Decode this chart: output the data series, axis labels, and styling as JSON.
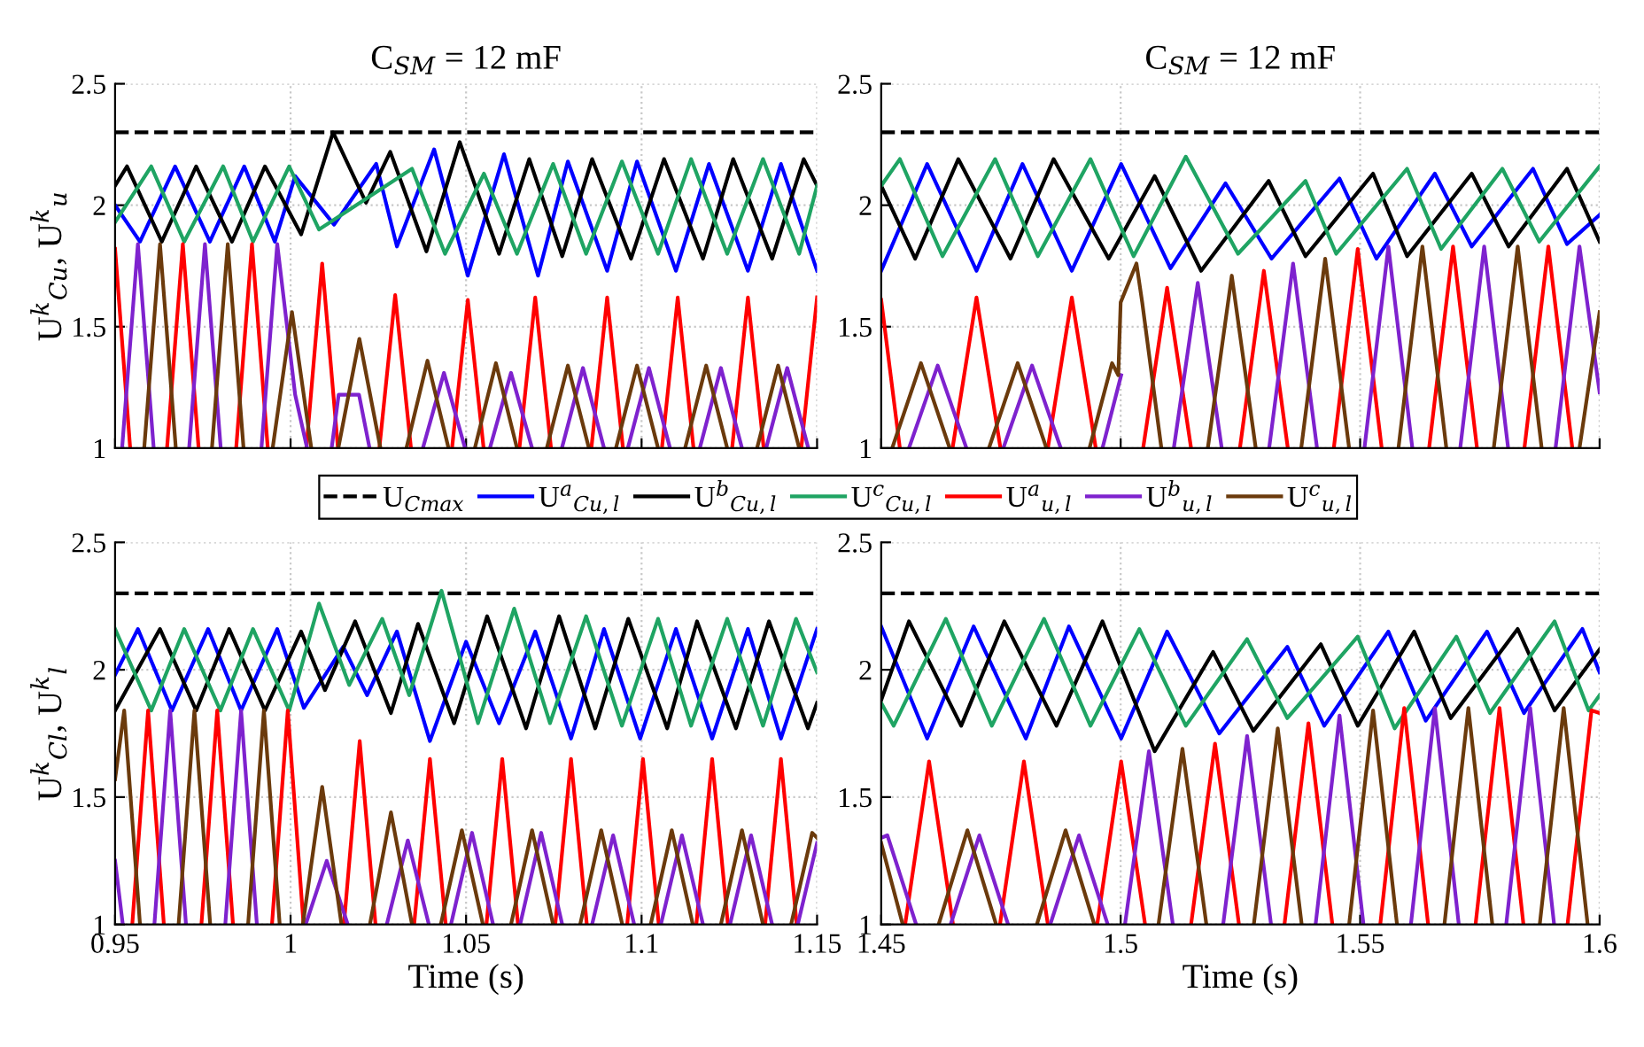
{
  "chart_data": [
    {
      "type": "line",
      "title": "C$_{SM}$ = 12 mF",
      "ylabel": "U$^{k}$$_{Cu}$, U$^{k}$$_{u}$",
      "xlim": [
        0.95,
        1.15
      ],
      "ylim": [
        1,
        2.5
      ],
      "xticks": [
        0.95,
        1,
        1.05,
        1.1,
        1.15
      ],
      "yticks": [
        1,
        1.5,
        2,
        2.5
      ],
      "grid": true,
      "tick_labels": "y",
      "legend": "bottom",
      "series": [
        {
          "name": "U$_{Cmax}$",
          "type": "line",
          "line_style": "dashed",
          "color": "#000000",
          "x": [
            0.95,
            1.15
          ],
          "values": [
            2.3,
            2.3
          ]
        },
        {
          "name": "U$^{a}$$_{Cu,l}$",
          "color": "#0000ff",
          "x": [
            0.95,
            0.9571,
            0.9671,
            0.977,
            0.9868,
            0.9955,
            1.0013,
            1.0124,
            1.0244,
            1.0303,
            1.0409,
            1.0505,
            1.0608,
            1.0705,
            1.079,
            1.0902,
            1.0987,
            1.1098,
            1.1192,
            1.1303,
            1.1397,
            1.15
          ],
          "values": [
            2.0,
            1.85,
            2.16,
            1.85,
            2.16,
            1.85,
            2.12,
            1.92,
            2.17,
            1.83,
            2.23,
            1.71,
            2.21,
            1.71,
            2.18,
            1.73,
            2.18,
            1.73,
            2.17,
            1.73,
            2.17,
            1.73
          ]
        },
        {
          "name": "U$^{b}$$_{Cu,l}$",
          "color": "#000000",
          "x": [
            0.95,
            0.9534,
            0.9633,
            0.9731,
            0.9833,
            0.9927,
            1.003,
            1.0121,
            1.0215,
            1.0284,
            1.0387,
            1.0482,
            1.0594,
            1.068,
            1.0774,
            1.0859,
            1.097,
            1.1064,
            1.1175,
            1.1261,
            1.1372,
            1.1462,
            1.15
          ],
          "values": [
            2.08,
            2.16,
            1.85,
            2.16,
            1.85,
            2.16,
            1.88,
            2.3,
            2.01,
            2.22,
            1.81,
            2.26,
            1.8,
            2.19,
            1.79,
            2.19,
            1.78,
            2.19,
            1.78,
            2.19,
            1.78,
            2.19,
            2.08
          ]
        },
        {
          "name": "U$^{c}$$_{Cu,l}$",
          "color": "#1fa463",
          "x": [
            0.95,
            0.9603,
            0.9697,
            0.9808,
            0.9893,
            0.9996,
            1.0081,
            1.0346,
            1.044,
            1.0551,
            1.0645,
            1.0748,
            1.0842,
            1.0944,
            1.1047,
            1.1141,
            1.1244,
            1.1346,
            1.1449,
            1.15
          ],
          "values": [
            1.93,
            2.16,
            1.85,
            2.16,
            1.85,
            2.16,
            1.9,
            2.15,
            1.8,
            2.13,
            1.8,
            2.17,
            1.8,
            2.18,
            1.8,
            2.19,
            1.8,
            2.19,
            1.8,
            2.08
          ]
        },
        {
          "name": "U$^{a}$$_{u,l}$",
          "color": "#ff0000",
          "x": [
            0.95,
            0.9543,
            null,
            0.9648,
            0.9693,
            0.9738,
            null,
            0.9845,
            0.989,
            0.9935,
            null,
            1.0045,
            1.009,
            1.0135,
            null,
            1.0253,
            1.0298,
            1.0343,
            null,
            1.046,
            1.0505,
            1.055,
            null,
            1.0652,
            1.0697,
            1.0742,
            null,
            1.0857,
            1.0902,
            1.0947,
            null,
            1.1058,
            1.1103,
            1.1148,
            null,
            1.1258,
            1.1303,
            1.1348,
            null,
            1.1455,
            1.15
          ],
          "values": [
            1.82,
            1,
            null,
            1,
            1.84,
            1,
            null,
            1,
            1.84,
            1,
            null,
            1,
            1.76,
            1,
            null,
            1,
            1.63,
            1,
            null,
            1,
            1.61,
            1,
            null,
            1,
            1.62,
            1,
            null,
            1,
            1.62,
            1,
            null,
            1,
            1.62,
            1,
            null,
            1,
            1.62,
            1,
            null,
            1,
            1.62
          ]
        },
        {
          "name": "U$^{b}$$_{u,l}$",
          "color": "#7e22ce",
          "x": [
            0.952,
            0.9565,
            0.961,
            null,
            0.9711,
            0.9756,
            0.9801,
            null,
            0.9917,
            0.9962,
            1.0013,
            1.0047,
            null,
            1.0117,
            1.0137,
            1.0195,
            1.0225,
            null,
            1.0377,
            1.0437,
            1.0497,
            null,
            1.0568,
            1.0628,
            1.0688,
            null,
            1.0773,
            1.0833,
            1.0893,
            null,
            1.0961,
            1.1021,
            1.1081,
            null,
            1.1166,
            1.1226,
            1.1286,
            null,
            1.1355,
            1.1415,
            1.1475
          ],
          "values": [
            1,
            1.84,
            1,
            null,
            1,
            1.84,
            1,
            null,
            1,
            1.84,
            1.22,
            1,
            null,
            1,
            1.22,
            1.22,
            1,
            null,
            1,
            1.31,
            1,
            null,
            1,
            1.31,
            1,
            null,
            1,
            1.33,
            1,
            null,
            1,
            1.33,
            1,
            null,
            1,
            1.33,
            1,
            null,
            1,
            1.33,
            1
          ]
        },
        {
          "name": "U$^{c}$$_{u,l}$",
          "color": "#6b3a0c",
          "x": [
            0.9583,
            0.9628,
            0.9673,
            null,
            0.9776,
            0.9821,
            0.9866,
            null,
            0.9949,
            1.0004,
            1.0059,
            null,
            1.0136,
            1.0196,
            1.0256,
            null,
            1.033,
            1.039,
            1.045,
            null,
            1.0525,
            1.0585,
            1.0645,
            null,
            1.073,
            1.079,
            1.085,
            null,
            1.0927,
            1.0987,
            1.1047,
            null,
            1.1124,
            1.1184,
            1.1244,
            null,
            1.1329,
            1.1389,
            1.1449
          ],
          "values": [
            1,
            1.84,
            1,
            null,
            1,
            1.84,
            1,
            null,
            1,
            1.56,
            1,
            null,
            1,
            1.45,
            1,
            null,
            1,
            1.36,
            1,
            null,
            1,
            1.35,
            1,
            null,
            1,
            1.34,
            1,
            null,
            1,
            1.34,
            1,
            null,
            1,
            1.34,
            1,
            null,
            1,
            1.34,
            1
          ]
        }
      ]
    },
    {
      "type": "line",
      "title": "C$_{SM}$ = 12 mF",
      "xlim": [
        1.45,
        1.6
      ],
      "ylim": [
        1,
        2.5
      ],
      "xticks": [
        1.45,
        1.5,
        1.55,
        1.6
      ],
      "yticks": [
        1,
        1.5,
        2,
        2.5
      ],
      "grid": true,
      "tick_labels": "y",
      "series": [
        {
          "type": "line",
          "line_style": "dashed",
          "color": "#000000",
          "x": [
            1.45,
            1.6
          ],
          "values": [
            2.3,
            2.3
          ]
        },
        {
          "color": "#0000ff",
          "x": [
            1.45,
            1.4596,
            1.4699,
            1.4795,
            1.4898,
            1.5001,
            1.5104,
            1.5219,
            1.5315,
            1.5457,
            1.5534,
            1.5656,
            1.5733,
            1.5861,
            1.5932,
            1.6
          ],
          "values": [
            1.73,
            2.17,
            1.73,
            2.17,
            1.73,
            2.17,
            1.74,
            2.09,
            1.78,
            2.11,
            1.78,
            2.13,
            1.83,
            2.15,
            1.84,
            1.96
          ]
        },
        {
          "color": "#000000",
          "x": [
            1.45,
            1.4571,
            1.4661,
            1.477,
            1.486,
            1.4975,
            1.5071,
            1.5168,
            1.5309,
            1.5386,
            1.5527,
            1.5598,
            1.5733,
            1.581,
            1.5932,
            1.6
          ],
          "values": [
            2.08,
            1.78,
            2.19,
            1.78,
            2.19,
            1.78,
            2.12,
            1.73,
            2.1,
            1.79,
            2.13,
            1.79,
            2.13,
            1.83,
            2.15,
            1.85
          ]
        },
        {
          "color": "#1fa463",
          "x": [
            1.45,
            1.4539,
            1.4628,
            1.4738,
            1.4827,
            1.4937,
            1.5027,
            1.5136,
            1.5245,
            1.5386,
            1.545,
            1.5598,
            1.5669,
            1.5797,
            1.5874,
            1.6
          ],
          "values": [
            2.08,
            2.19,
            1.79,
            2.19,
            1.79,
            2.19,
            1.79,
            2.2,
            1.8,
            2.1,
            1.8,
            2.15,
            1.82,
            2.15,
            1.85,
            2.16
          ]
        },
        {
          "color": "#ff0000",
          "x": [
            1.45,
            1.4539,
            null,
            1.4649,
            1.4699,
            1.4749,
            null,
            1.4848,
            1.4898,
            1.4948,
            null,
            1.5047,
            1.5097,
            1.5147,
            null,
            1.5249,
            1.5299,
            1.5349,
            null,
            1.5445,
            1.5495,
            1.5545,
            null,
            1.5644,
            1.5694,
            1.5744,
            null,
            1.5843,
            1.5893,
            1.5943
          ],
          "values": [
            1.61,
            1,
            null,
            1,
            1.62,
            1,
            null,
            1,
            1.62,
            1,
            null,
            1,
            1.66,
            1,
            null,
            1,
            1.73,
            1,
            null,
            1,
            1.82,
            1,
            null,
            1,
            1.83,
            1,
            null,
            1,
            1.83,
            1
          ]
        },
        {
          "color": "#7e22ce",
          "x": [
            1.4558,
            1.4618,
            1.4678,
            null,
            1.4755,
            1.4815,
            1.4875,
            null,
            1.4962,
            1.5001,
            null,
            1.5111,
            1.5161,
            1.5211,
            null,
            1.531,
            1.536,
            1.541,
            null,
            1.5509,
            1.5559,
            1.5609,
            null,
            1.5709,
            1.5759,
            1.5809,
            null,
            1.5908,
            1.5958,
            1.6
          ],
          "values": [
            1,
            1.34,
            1,
            null,
            1,
            1.34,
            1,
            null,
            1,
            1.3,
            null,
            1,
            1.68,
            1,
            null,
            1,
            1.76,
            1,
            null,
            1,
            1.83,
            1,
            null,
            1,
            1.83,
            1,
            null,
            1,
            1.83,
            1.23
          ]
        },
        {
          "color": "#6b3a0c",
          "x": [
            1.4523,
            1.4583,
            1.4643,
            null,
            1.4725,
            1.4785,
            1.4845,
            null,
            1.4935,
            1.4982,
            1.4995,
            1.5,
            1.5033,
            1.5045,
            1.5085,
            null,
            1.5182,
            1.5232,
            1.5282,
            null,
            1.5377,
            1.5427,
            1.5477,
            null,
            1.558,
            1.563,
            1.568,
            null,
            1.5779,
            1.5829,
            1.5879,
            null,
            1.5958,
            1.6
          ],
          "values": [
            1,
            1.35,
            1,
            null,
            1,
            1.35,
            1,
            null,
            1,
            1.35,
            1.3,
            1.6,
            1.76,
            1.6,
            1,
            null,
            1,
            1.71,
            1,
            null,
            1,
            1.78,
            1,
            null,
            1,
            1.83,
            1,
            null,
            1,
            1.83,
            1,
            null,
            1,
            1.56
          ]
        }
      ]
    },
    {
      "type": "line",
      "xlabel": "Time (s)",
      "ylabel": "U$^{k}$$_{Cl}$, U$^{k}$$_{l}$",
      "xlim": [
        0.95,
        1.15
      ],
      "ylim": [
        1,
        2.5
      ],
      "xticks": [
        0.95,
        1,
        1.05,
        1.1,
        1.15
      ],
      "yticks": [
        1,
        1.5,
        2,
        2.5
      ],
      "grid": true,
      "series": [
        {
          "type": "line",
          "line_style": "dashed",
          "color": "#000000",
          "x": [
            0.95,
            1.15
          ],
          "values": [
            2.3,
            2.3
          ]
        },
        {
          "color": "#0000ff",
          "x": [
            0.95,
            0.9565,
            0.9662,
            0.9765,
            0.9859,
            0.9962,
            1.0038,
            1.015,
            1.0218,
            1.0303,
            1.0397,
            1.05,
            1.0594,
            1.0697,
            1.0799,
            1.0893,
            1.0996,
            1.1098,
            1.1201,
            1.1303,
            1.1397,
            1.15
          ],
          "values": [
            1.98,
            2.16,
            1.84,
            2.16,
            1.84,
            2.16,
            1.85,
            2.09,
            1.9,
            2.15,
            1.72,
            2.11,
            1.79,
            2.15,
            1.73,
            2.16,
            1.73,
            2.16,
            1.73,
            2.16,
            1.73,
            2.16
          ]
        },
        {
          "color": "#000000",
          "x": [
            0.95,
            0.9628,
            0.9731,
            0.9825,
            0.9927,
            1.003,
            1.0098,
            1.0184,
            1.0286,
            1.0363,
            1.0466,
            1.056,
            1.0671,
            1.0765,
            1.0868,
            1.0962,
            1.1073,
            1.1158,
            1.1269,
            1.1363,
            1.1474,
            1.15
          ],
          "values": [
            1.84,
            2.16,
            1.84,
            2.16,
            1.84,
            2.15,
            1.92,
            2.19,
            1.83,
            2.18,
            1.79,
            2.21,
            1.77,
            2.21,
            1.77,
            2.2,
            1.77,
            2.19,
            1.77,
            2.19,
            1.77,
            1.87
          ]
        },
        {
          "color": "#1fa463",
          "x": [
            0.95,
            0.9603,
            0.9697,
            0.98,
            0.9893,
            0.9996,
            1.0081,
            1.0167,
            1.0261,
            1.0338,
            1.043,
            1.0534,
            1.0637,
            1.0739,
            1.0842,
            1.0944,
            1.1047,
            1.1141,
            1.1244,
            1.1346,
            1.144,
            1.15
          ],
          "values": [
            2.16,
            1.84,
            2.16,
            1.84,
            2.16,
            1.84,
            2.26,
            1.94,
            2.2,
            1.9,
            2.31,
            1.79,
            2.24,
            1.79,
            2.21,
            1.78,
            2.2,
            1.78,
            2.2,
            1.78,
            2.2,
            1.99
          ]
        },
        {
          "color": "#ff0000",
          "x": [
            0.9549,
            0.9594,
            0.9639,
            null,
            0.9746,
            0.9791,
            0.9836,
            null,
            0.9947,
            0.9992,
            1.0037,
            null,
            1.0152,
            1.0197,
            1.0242,
            null,
            1.0352,
            1.0397,
            1.0442,
            null,
            1.0558,
            1.0603,
            1.0648,
            null,
            1.0754,
            1.0799,
            1.0844,
            null,
            1.0959,
            1.1004,
            1.1049,
            null,
            1.1156,
            1.1201,
            1.1246,
            null,
            1.1352,
            1.1397,
            1.1442
          ],
          "values": [
            1,
            1.84,
            1,
            null,
            1,
            1.84,
            1,
            null,
            1,
            1.84,
            1,
            null,
            1,
            1.72,
            1,
            null,
            1,
            1.65,
            1,
            null,
            1,
            1.65,
            1,
            null,
            1,
            1.65,
            1,
            null,
            1,
            1.65,
            1,
            null,
            1,
            1.65,
            1,
            null,
            1,
            1.65,
            1
          ]
        },
        {
          "color": "#7e22ce",
          "x": [
            0.95,
            0.9522,
            null,
            0.9612,
            0.9657,
            0.9702,
            null,
            0.9814,
            0.9859,
            0.9904,
            null,
            1.0043,
            1.0103,
            1.0163,
            null,
            1.0274,
            1.0334,
            1.0394,
            null,
            1.0457,
            1.0517,
            1.0577,
            null,
            1.0654,
            1.0714,
            1.0774,
            null,
            1.0859,
            1.0919,
            1.0979,
            null,
            1.1055,
            1.1115,
            1.1175,
            null,
            1.1252,
            1.1312,
            1.1372,
            null,
            1.1445,
            1.15
          ],
          "values": [
            1.25,
            1,
            null,
            1,
            1.84,
            1,
            null,
            1,
            1.84,
            1,
            null,
            1,
            1.25,
            1,
            null,
            1,
            1.33,
            1,
            null,
            1,
            1.36,
            1,
            null,
            1,
            1.36,
            1,
            null,
            1,
            1.35,
            1,
            null,
            1,
            1.35,
            1,
            null,
            1,
            1.35,
            1,
            null,
            1,
            1.32
          ]
        },
        {
          "color": "#6b3a0c",
          "x": [
            0.95,
            0.9526,
            0.9571,
            null,
            0.9681,
            0.9726,
            0.9771,
            null,
            0.9879,
            0.9924,
            0.9969,
            null,
            1.0035,
            1.009,
            1.0145,
            null,
            1.0226,
            1.0286,
            1.0346,
            null,
            1.0428,
            1.0488,
            1.0548,
            null,
            1.0628,
            1.0688,
            1.0748,
            null,
            1.0825,
            1.0885,
            1.0945,
            null,
            1.1026,
            1.1086,
            1.1146,
            null,
            1.1226,
            1.1286,
            1.1346,
            null,
            1.1426,
            1.1486,
            1.15
          ],
          "values": [
            1.57,
            1.84,
            1,
            null,
            1,
            1.84,
            1,
            null,
            1,
            1.84,
            1,
            null,
            1,
            1.54,
            1,
            null,
            1,
            1.44,
            1,
            null,
            1,
            1.37,
            1,
            null,
            1,
            1.37,
            1,
            null,
            1,
            1.37,
            1,
            null,
            1,
            1.37,
            1,
            null,
            1,
            1.37,
            1,
            null,
            1,
            1.36,
            1.34
          ]
        }
      ]
    },
    {
      "type": "line",
      "xlabel": "Time (s)",
      "xlim": [
        1.45,
        1.6
      ],
      "ylim": [
        1,
        2.5
      ],
      "xticks": [
        1.45,
        1.5,
        1.55,
        1.6
      ],
      "yticks": [
        1,
        1.5,
        2,
        2.5
      ],
      "grid": true,
      "series": [
        {
          "type": "line",
          "line_style": "dashed",
          "color": "#000000",
          "x": [
            1.45,
            1.6
          ],
          "values": [
            2.3,
            2.3
          ]
        },
        {
          "color": "#0000ff",
          "x": [
            1.45,
            1.4596,
            1.4693,
            1.4802,
            1.4892,
            1.5001,
            1.5097,
            1.5206,
            1.5348,
            1.5425,
            1.5559,
            1.5637,
            1.5765,
            1.5842,
            1.5964,
            1.6
          ],
          "values": [
            2.17,
            1.73,
            2.17,
            1.73,
            2.17,
            1.73,
            2.15,
            1.75,
            2.09,
            1.78,
            2.15,
            1.8,
            2.15,
            1.83,
            2.16,
            1.99
          ]
        },
        {
          "color": "#000000",
          "x": [
            1.45,
            1.4558,
            1.4667,
            1.4757,
            1.4866,
            1.4962,
            1.5071,
            1.5193,
            1.5277,
            1.5418,
            1.5495,
            1.5613,
            1.5689,
            1.5829,
            1.5906,
            1.6
          ],
          "values": [
            1.88,
            2.19,
            1.78,
            2.19,
            1.78,
            2.19,
            1.68,
            2.07,
            1.76,
            2.1,
            1.78,
            2.15,
            1.81,
            2.16,
            1.84,
            2.08
          ]
        },
        {
          "color": "#1fa463",
          "x": [
            1.45,
            1.4526,
            1.4635,
            1.4731,
            1.484,
            1.4937,
            1.5039,
            1.5136,
            1.5264,
            1.5348,
            1.5495,
            1.5572,
            1.5701,
            1.5771,
            1.5906,
            1.5977,
            1.6
          ],
          "values": [
            1.87,
            1.78,
            2.2,
            1.78,
            2.2,
            1.78,
            2.16,
            1.78,
            2.12,
            1.81,
            2.13,
            1.77,
            2.13,
            1.83,
            2.19,
            1.84,
            1.9
          ]
        },
        {
          "color": "#ff0000",
          "x": [
            1.455,
            1.46,
            1.465,
            null,
            1.4748,
            1.4798,
            1.4848,
            null,
            1.4951,
            1.5001,
            1.5051,
            null,
            1.5147,
            1.5197,
            1.5247,
            null,
            1.5342,
            1.5392,
            1.5442,
            null,
            1.5542,
            1.5592,
            1.5642,
            null,
            1.5741,
            1.5791,
            1.5841,
            null,
            1.5933,
            1.5983,
            1.6
          ],
          "values": [
            1,
            1.64,
            1,
            null,
            1,
            1.64,
            1,
            null,
            1,
            1.64,
            1,
            null,
            1,
            1.71,
            1,
            null,
            1,
            1.79,
            1,
            null,
            1,
            1.85,
            1,
            null,
            1,
            1.85,
            1,
            null,
            1,
            1.84,
            1.83
          ]
        },
        {
          "color": "#7e22ce",
          "x": [
            1.45,
            1.4513,
            1.4573,
            null,
            1.4645,
            1.4705,
            1.4765,
            null,
            1.4853,
            1.4913,
            1.4973,
            null,
            1.5009,
            1.5059,
            1.5109,
            null,
            1.5214,
            1.5264,
            1.5314,
            null,
            1.5407,
            1.5457,
            1.5507,
            null,
            1.5606,
            1.5656,
            1.5706,
            null,
            1.5805,
            1.5855,
            1.5905
          ],
          "values": [
            1.34,
            1.35,
            1,
            null,
            1,
            1.35,
            1,
            null,
            1,
            1.35,
            1,
            null,
            1,
            1.68,
            1,
            null,
            1,
            1.74,
            1,
            null,
            1,
            1.82,
            1,
            null,
            1,
            1.85,
            1,
            null,
            1,
            1.85,
            1
          ]
        },
        {
          "color": "#6b3a0c",
          "x": [
            1.45,
            1.4545,
            null,
            1.462,
            1.468,
            1.474,
            null,
            1.4825,
            1.4885,
            1.4945,
            null,
            1.5079,
            1.5129,
            1.5179,
            null,
            1.5278,
            1.5328,
            1.5378,
            null,
            1.5477,
            1.5527,
            1.5577,
            null,
            1.5676,
            1.5726,
            1.5776,
            null,
            1.5875,
            1.5925,
            1.5975
          ],
          "values": [
            1.32,
            1,
            null,
            1,
            1.37,
            1,
            null,
            1,
            1.37,
            1,
            null,
            1,
            1.69,
            1,
            null,
            1,
            1.77,
            1,
            null,
            1,
            1.84,
            1,
            null,
            1,
            1.85,
            1,
            null,
            1,
            1.85,
            1
          ]
        }
      ]
    }
  ]
}
